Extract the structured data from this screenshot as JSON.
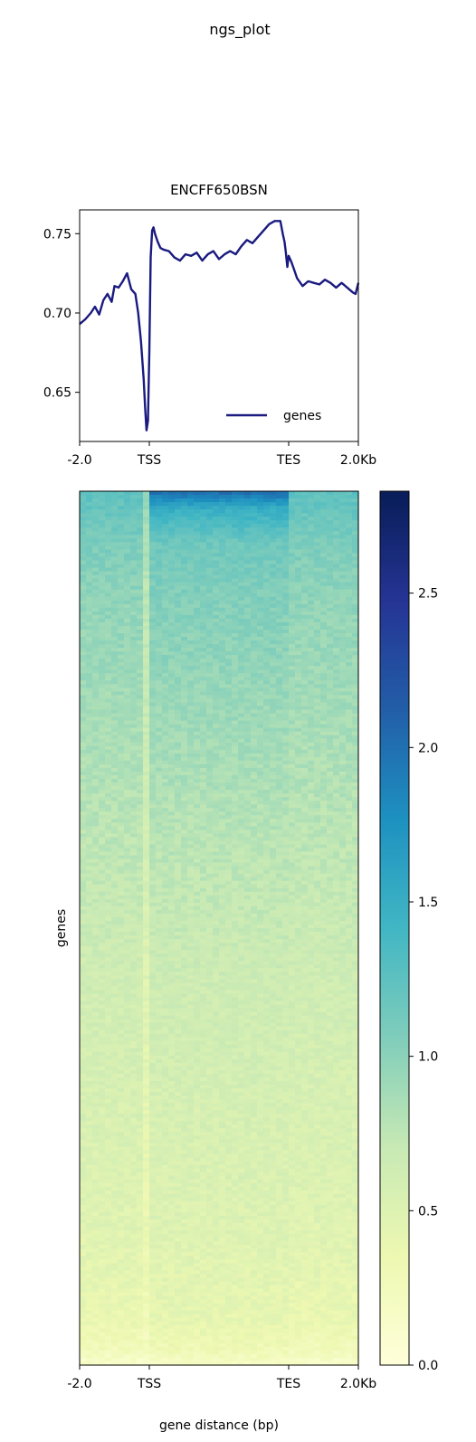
{
  "figure": {
    "suptitle": "ngs_plot"
  },
  "chart_data": [
    {
      "type": "line",
      "title": "ENCFF650BSN",
      "xlabel": "",
      "ylabel": "",
      "xlim": [
        0,
        1
      ],
      "ylim": [
        0.619,
        0.765
      ],
      "x_tick_labels": [
        "-2.0",
        "TSS",
        "TES",
        "2.0Kb"
      ],
      "x_tick_positions": [
        0,
        0.25,
        0.75,
        1
      ],
      "y_ticks": [
        0.65,
        0.7,
        0.75
      ],
      "y_tick_labels": [
        "0.65",
        "0.70",
        "0.75"
      ],
      "legend": {
        "placement": "lower-right"
      },
      "series": [
        {
          "name": "genes",
          "color": "#1a1a80",
          "x": [
            0,
            0.02,
            0.04,
            0.055,
            0.07,
            0.085,
            0.1,
            0.115,
            0.125,
            0.14,
            0.155,
            0.17,
            0.185,
            0.2,
            0.21,
            0.22,
            0.23,
            0.235,
            0.24,
            0.245,
            0.25,
            0.255,
            0.26,
            0.265,
            0.27,
            0.28,
            0.29,
            0.3,
            0.32,
            0.34,
            0.36,
            0.38,
            0.4,
            0.42,
            0.44,
            0.46,
            0.48,
            0.5,
            0.52,
            0.54,
            0.56,
            0.58,
            0.6,
            0.62,
            0.64,
            0.66,
            0.68,
            0.7,
            0.72,
            0.73,
            0.735,
            0.74,
            0.745,
            0.75,
            0.76,
            0.77,
            0.78,
            0.8,
            0.82,
            0.84,
            0.86,
            0.88,
            0.9,
            0.92,
            0.94,
            0.96,
            0.98,
            0.99,
            1.0
          ],
          "y": [
            0.693,
            0.696,
            0.7,
            0.704,
            0.699,
            0.708,
            0.712,
            0.707,
            0.717,
            0.716,
            0.72,
            0.725,
            0.715,
            0.712,
            0.7,
            0.682,
            0.658,
            0.64,
            0.626,
            0.632,
            0.675,
            0.735,
            0.752,
            0.754,
            0.75,
            0.745,
            0.741,
            0.74,
            0.739,
            0.735,
            0.733,
            0.737,
            0.736,
            0.738,
            0.733,
            0.737,
            0.739,
            0.734,
            0.737,
            0.739,
            0.737,
            0.742,
            0.746,
            0.744,
            0.748,
            0.752,
            0.756,
            0.758,
            0.758,
            0.749,
            0.745,
            0.738,
            0.729,
            0.736,
            0.732,
            0.727,
            0.722,
            0.717,
            0.72,
            0.719,
            0.718,
            0.721,
            0.719,
            0.716,
            0.719,
            0.716,
            0.713,
            0.712,
            0.719
          ]
        }
      ]
    },
    {
      "type": "heatmap",
      "xlabel": "gene distance (bp)",
      "ylabel": "genes",
      "x_tick_labels": [
        "-2.0",
        "TSS",
        "TES",
        "2.0Kb"
      ],
      "x_tick_positions": [
        0,
        0.25,
        0.75,
        1
      ],
      "colormap": "YlGnBu",
      "colorbar": {
        "vmin": 0.0,
        "vmax": 2.83,
        "ticks": [
          0.0,
          0.5,
          1.0,
          1.5,
          2.0,
          2.5
        ],
        "tick_labels": [
          "0.0",
          "0.5",
          "1.0",
          "1.5",
          "2.0",
          "2.5"
        ]
      },
      "colormap_stops": [
        "#ffffd9",
        "#edf8b1",
        "#c7e9b4",
        "#7fcdbb",
        "#41b6c4",
        "#1d91c0",
        "#225ea8",
        "#253494",
        "#081d58"
      ],
      "row_profile": {
        "rows_top_to_bottom_fraction": [
          0.0,
          0.02,
          0.06,
          0.12,
          0.25,
          0.4,
          0.55,
          0.7,
          0.85,
          0.95,
          0.985,
          1.0
        ],
        "body_value": [
          2.05,
          1.5,
          1.15,
          1.05,
          0.92,
          0.78,
          0.66,
          0.58,
          0.5,
          0.42,
          0.3,
          0.15
        ],
        "flank_value": [
          1.25,
          1.2,
          1.08,
          0.98,
          0.88,
          0.76,
          0.64,
          0.56,
          0.48,
          0.38,
          0.25,
          0.12
        ]
      }
    }
  ]
}
